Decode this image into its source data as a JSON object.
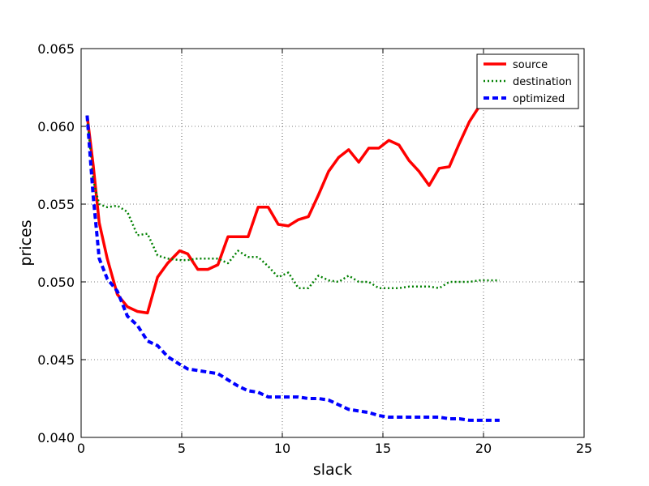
{
  "chart_data": {
    "type": "line",
    "xlabel": "slack",
    "ylabel": "prices",
    "xlim": [
      0,
      25
    ],
    "ylim": [
      0.04,
      0.065
    ],
    "xticks": [
      0,
      5,
      10,
      15,
      20,
      25
    ],
    "yticks": [
      0.04,
      0.045,
      0.05,
      0.055,
      0.06,
      0.065
    ],
    "xtick_labels": [
      "0",
      "5",
      "10",
      "15",
      "20",
      "25"
    ],
    "ytick_labels": [
      "0.040",
      "0.045",
      "0.050",
      "0.055",
      "0.060",
      "0.065"
    ],
    "grid": true,
    "legend_position": "top-right",
    "series": [
      {
        "name": "source",
        "color": "#ff0000",
        "style": "solid",
        "x": [
          0.3,
          0.6,
          0.9,
          1.3,
          1.8,
          2.3,
          2.8,
          3.3,
          3.8,
          4.3,
          4.9,
          5.3,
          5.8,
          6.3,
          6.8,
          7.3,
          7.8,
          8.3,
          8.8,
          9.3,
          9.8,
          10.3,
          10.8,
          11.3,
          11.8,
          12.3,
          12.8,
          13.3,
          13.8,
          14.3,
          14.8,
          15.3,
          15.8,
          16.3,
          16.8,
          17.3,
          17.8,
          18.3,
          18.8,
          19.3,
          19.8
        ],
        "y": [
          0.0607,
          0.0575,
          0.0538,
          0.0515,
          0.0492,
          0.0484,
          0.0481,
          0.048,
          0.0503,
          0.0512,
          0.052,
          0.0518,
          0.0508,
          0.0508,
          0.0511,
          0.0529,
          0.0529,
          0.0529,
          0.0548,
          0.0548,
          0.0537,
          0.0536,
          0.054,
          0.0542,
          0.0556,
          0.0571,
          0.058,
          0.0585,
          0.0577,
          0.0586,
          0.0586,
          0.0591,
          0.0588,
          0.0578,
          0.0571,
          0.0562,
          0.0573,
          0.0574,
          0.0589,
          0.0603,
          0.0613
        ]
      },
      {
        "name": "destination",
        "color": "#008000",
        "style": "dotted",
        "x": [
          0.3,
          0.6,
          0.9,
          1.3,
          1.8,
          2.3,
          2.8,
          3.3,
          3.8,
          4.3,
          4.9,
          5.3,
          5.8,
          6.3,
          6.8,
          7.3,
          7.8,
          8.3,
          8.8,
          9.3,
          9.8,
          10.3,
          10.8,
          11.3,
          11.8,
          12.3,
          12.8,
          13.3,
          13.8,
          14.3,
          14.8,
          15.3,
          15.8,
          16.3,
          16.8,
          17.3,
          17.8,
          18.3,
          18.8,
          19.3,
          19.8,
          20.3,
          20.8
        ],
        "y": [
          0.0607,
          0.0565,
          0.055,
          0.0548,
          0.0549,
          0.0545,
          0.053,
          0.0531,
          0.0517,
          0.0515,
          0.0514,
          0.0514,
          0.0515,
          0.0515,
          0.0515,
          0.0512,
          0.052,
          0.0516,
          0.0516,
          0.051,
          0.0503,
          0.0506,
          0.0496,
          0.0496,
          0.0504,
          0.0501,
          0.05,
          0.0504,
          0.05,
          0.05,
          0.0496,
          0.0496,
          0.0496,
          0.0497,
          0.0497,
          0.0497,
          0.0496,
          0.05,
          0.05,
          0.05,
          0.0501,
          0.0501,
          0.0501
        ]
      },
      {
        "name": "optimized",
        "color": "#0000ff",
        "style": "dashed",
        "x": [
          0.3,
          0.6,
          0.9,
          1.3,
          1.8,
          2.3,
          2.8,
          3.3,
          3.8,
          4.3,
          4.9,
          5.3,
          5.8,
          6.3,
          6.8,
          7.3,
          7.8,
          8.3,
          8.8,
          9.3,
          9.8,
          10.3,
          10.8,
          11.3,
          11.8,
          12.3,
          12.8,
          13.3,
          13.8,
          14.3,
          14.8,
          15.3,
          15.8,
          16.3,
          16.8,
          17.3,
          17.8,
          18.3,
          18.8,
          19.3,
          19.8,
          20.3,
          20.8
        ],
        "y": [
          0.0607,
          0.0555,
          0.0515,
          0.0502,
          0.0494,
          0.0478,
          0.0472,
          0.0462,
          0.0459,
          0.0452,
          0.0447,
          0.0444,
          0.0443,
          0.0442,
          0.0441,
          0.0437,
          0.0433,
          0.043,
          0.0429,
          0.0426,
          0.0426,
          0.0426,
          0.0426,
          0.0425,
          0.0425,
          0.0424,
          0.0421,
          0.0418,
          0.0417,
          0.0416,
          0.0414,
          0.0413,
          0.0413,
          0.0413,
          0.0413,
          0.0413,
          0.0413,
          0.0412,
          0.0412,
          0.0411,
          0.0411,
          0.0411,
          0.0411
        ]
      }
    ]
  }
}
